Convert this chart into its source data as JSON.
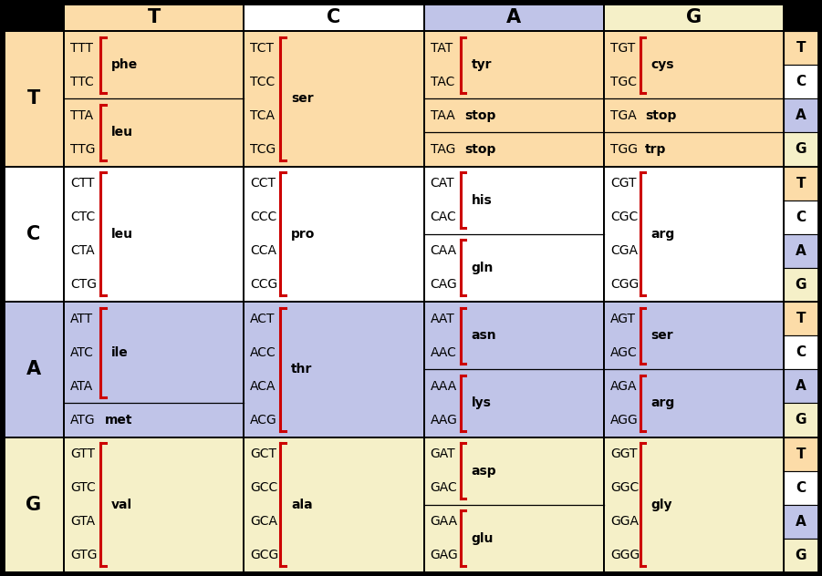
{
  "col_headers": [
    "T",
    "C",
    "A",
    "G"
  ],
  "row_headers": [
    "T",
    "C",
    "A",
    "G"
  ],
  "right_col": [
    "T",
    "C",
    "A",
    "G",
    "T",
    "C",
    "A",
    "G",
    "T",
    "C",
    "A",
    "G",
    "T",
    "C",
    "A",
    "G"
  ],
  "color_T": "#FCDCA8",
  "color_C": "#FFFFFF",
  "color_A": "#C0C4E8",
  "color_G": "#F5F0C8",
  "color_red": "#CC0000",
  "codon_data": [
    {
      "row": 0,
      "col": 0,
      "groups": [
        {
          "codons": [
            "TTT",
            "TTC"
          ],
          "aa": "phe",
          "bold": false
        },
        {
          "codons": [
            "TTA",
            "TTG"
          ],
          "aa": "leu",
          "bold": false
        }
      ]
    },
    {
      "row": 0,
      "col": 1,
      "groups": [
        {
          "codons": [
            "TCT",
            "TCC",
            "TCA",
            "TCG"
          ],
          "aa": "ser",
          "bold": false
        }
      ]
    },
    {
      "row": 0,
      "col": 2,
      "groups": [
        {
          "codons": [
            "TAT",
            "TAC"
          ],
          "aa": "tyr",
          "bold": false
        },
        {
          "codons": [
            "TAA"
          ],
          "aa": "stop",
          "bold": true
        },
        {
          "codons": [
            "TAG"
          ],
          "aa": "stop",
          "bold": true
        }
      ]
    },
    {
      "row": 0,
      "col": 3,
      "groups": [
        {
          "codons": [
            "TGT",
            "TGC"
          ],
          "aa": "cys",
          "bold": false
        },
        {
          "codons": [
            "TGA"
          ],
          "aa": "stop",
          "bold": true
        },
        {
          "codons": [
            "TGG"
          ],
          "aa": "trp",
          "bold": false
        }
      ]
    },
    {
      "row": 1,
      "col": 0,
      "groups": [
        {
          "codons": [
            "CTT",
            "CTC",
            "CTA",
            "CTG"
          ],
          "aa": "leu",
          "bold": false
        }
      ]
    },
    {
      "row": 1,
      "col": 1,
      "groups": [
        {
          "codons": [
            "CCT",
            "CCC",
            "CCA",
            "CCG"
          ],
          "aa": "pro",
          "bold": false
        }
      ]
    },
    {
      "row": 1,
      "col": 2,
      "groups": [
        {
          "codons": [
            "CAT",
            "CAC"
          ],
          "aa": "his",
          "bold": false
        },
        {
          "codons": [
            "CAA",
            "CAG"
          ],
          "aa": "gln",
          "bold": false
        }
      ]
    },
    {
      "row": 1,
      "col": 3,
      "groups": [
        {
          "codons": [
            "CGT",
            "CGC",
            "CGA",
            "CGG"
          ],
          "aa": "arg",
          "bold": false
        }
      ]
    },
    {
      "row": 2,
      "col": 0,
      "groups": [
        {
          "codons": [
            "ATT",
            "ATC",
            "ATA"
          ],
          "aa": "ile",
          "bold": false
        },
        {
          "codons": [
            "ATG"
          ],
          "aa": "met",
          "bold": false
        }
      ]
    },
    {
      "row": 2,
      "col": 1,
      "groups": [
        {
          "codons": [
            "ACT",
            "ACC",
            "ACA",
            "ACG"
          ],
          "aa": "thr",
          "bold": false
        }
      ]
    },
    {
      "row": 2,
      "col": 2,
      "groups": [
        {
          "codons": [
            "AAT",
            "AAC"
          ],
          "aa": "asn",
          "bold": false
        },
        {
          "codons": [
            "AAA",
            "AAG"
          ],
          "aa": "lys",
          "bold": false
        }
      ]
    },
    {
      "row": 2,
      "col": 3,
      "groups": [
        {
          "codons": [
            "AGT",
            "AGC"
          ],
          "aa": "ser",
          "bold": false
        },
        {
          "codons": [
            "AGA",
            "AGG"
          ],
          "aa": "arg",
          "bold": false
        }
      ]
    },
    {
      "row": 3,
      "col": 0,
      "groups": [
        {
          "codons": [
            "GTT",
            "GTC",
            "GTA",
            "GTG"
          ],
          "aa": "val",
          "bold": false
        }
      ]
    },
    {
      "row": 3,
      "col": 1,
      "groups": [
        {
          "codons": [
            "GCT",
            "GCC",
            "GCA",
            "GCG"
          ],
          "aa": "ala",
          "bold": false
        }
      ]
    },
    {
      "row": 3,
      "col": 2,
      "groups": [
        {
          "codons": [
            "GAT",
            "GAC"
          ],
          "aa": "asp",
          "bold": false
        },
        {
          "codons": [
            "GAA",
            "GAG"
          ],
          "aa": "glu",
          "bold": false
        }
      ]
    },
    {
      "row": 3,
      "col": 3,
      "groups": [
        {
          "codons": [
            "GGT",
            "GGC",
            "GGA",
            "GGG"
          ],
          "aa": "gly",
          "bold": false
        }
      ]
    }
  ]
}
